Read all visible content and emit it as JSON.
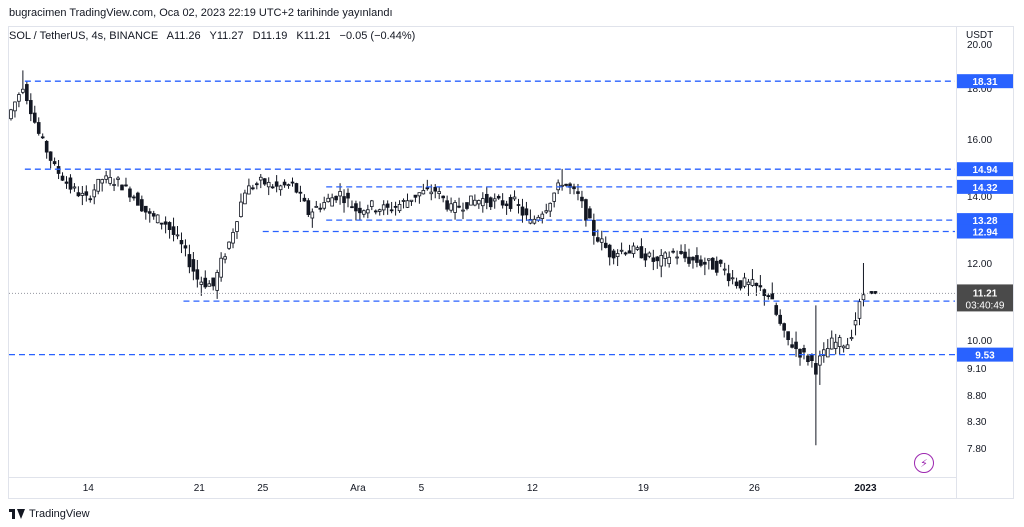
{
  "header": {
    "published_text": "bugracimen TradingView.com, Oca 02, 2023 22:19 UTC+2 tarihinde yayınlandı"
  },
  "legend": {
    "symbol": "SOL / TetherUS, 4s, BINANCE",
    "open": "A11.26",
    "high": "Y11.27",
    "low": "D11.19",
    "close": "K11.21",
    "change": "−0.05 (−0.44%)"
  },
  "axis": {
    "currency": "USDT",
    "y_ticks": [
      "20.00",
      "18.00",
      "16.00",
      "14.00",
      "12.00",
      "10.00",
      "9.10",
      "8.80",
      "8.30",
      "7.80"
    ],
    "x_ticks": [
      "14",
      "21",
      "25",
      "Ara",
      "5",
      "12",
      "19",
      "26",
      "2023"
    ]
  },
  "price_labels": {
    "current_price": "11.21",
    "countdown": "03:40:49"
  },
  "footer": {
    "brand": "TradingView"
  },
  "colors": {
    "level_line": "#2962ff",
    "candle": "#131722",
    "price_tag": "#2962ff",
    "current_tag": "#4a4a4a",
    "alert_icon": "#9c27b0"
  },
  "chart_data": {
    "type": "candlestick",
    "symbol": "SOL / TetherUS",
    "interval": "4s",
    "exchange": "BINANCE",
    "ylabel": "USDT",
    "ylim": [
      7.6,
      20.2
    ],
    "y_ticks": [
      20.0,
      18.0,
      16.0,
      14.0,
      12.0,
      10.0,
      9.1,
      8.8,
      8.3,
      7.8
    ],
    "x_ticks": [
      {
        "label": "14",
        "date": "2022-11-14"
      },
      {
        "label": "21",
        "date": "2022-11-21"
      },
      {
        "label": "25",
        "date": "2022-11-25"
      },
      {
        "label": "Ara",
        "date": "2022-12-01"
      },
      {
        "label": "5",
        "date": "2022-12-05"
      },
      {
        "label": "12",
        "date": "2022-12-12"
      },
      {
        "label": "19",
        "date": "2022-12-19"
      },
      {
        "label": "26",
        "date": "2022-12-26"
      },
      {
        "label": "2023",
        "date": "2023-01-02"
      }
    ],
    "x_range": [
      "2022-11-09",
      "2023-01-06"
    ],
    "horizontal_levels": [
      {
        "value": 18.31,
        "from": "2022-11-10",
        "label": "18.31"
      },
      {
        "value": 14.94,
        "from": "2022-11-10",
        "label": "14.94"
      },
      {
        "value": 14.32,
        "from": "2022-11-29",
        "label": "14.32"
      },
      {
        "value": 13.28,
        "from": "2022-11-29",
        "label": "13.28"
      },
      {
        "value": 12.94,
        "from": "2022-11-25",
        "label": "12.94"
      },
      {
        "value": 11.01,
        "from": "2022-11-20",
        "label": "11.01"
      },
      {
        "value": 9.53,
        "from": "2022-11-09",
        "label": "9.53"
      }
    ],
    "last_price": 11.21,
    "close_path": [
      [
        "2022-11-09",
        16.8
      ],
      [
        "2022-11-10",
        18.1
      ],
      [
        "2022-11-11",
        16.2
      ],
      [
        "2022-11-12",
        15.0
      ],
      [
        "2022-11-13",
        14.3
      ],
      [
        "2022-11-14",
        13.9
      ],
      [
        "2022-11-15",
        14.6
      ],
      [
        "2022-11-16",
        14.5
      ],
      [
        "2022-11-17",
        14.0
      ],
      [
        "2022-11-18",
        13.4
      ],
      [
        "2022-11-19",
        13.2
      ],
      [
        "2022-11-20",
        12.5
      ],
      [
        "2022-11-21",
        11.6
      ],
      [
        "2022-11-22",
        11.4
      ],
      [
        "2022-11-23",
        12.6
      ],
      [
        "2022-11-24",
        14.2
      ],
      [
        "2022-11-25",
        14.5
      ],
      [
        "2022-11-26",
        14.3
      ],
      [
        "2022-11-27",
        14.4
      ],
      [
        "2022-11-28",
        13.5
      ],
      [
        "2022-11-29",
        13.8
      ],
      [
        "2022-11-30",
        14.1
      ],
      [
        "2022-12-01",
        13.6
      ],
      [
        "2022-12-02",
        13.7
      ],
      [
        "2022-12-03",
        13.6
      ],
      [
        "2022-12-04",
        13.8
      ],
      [
        "2022-12-05",
        14.1
      ],
      [
        "2022-12-06",
        14.2
      ],
      [
        "2022-12-07",
        13.6
      ],
      [
        "2022-12-08",
        13.8
      ],
      [
        "2022-12-09",
        13.9
      ],
      [
        "2022-12-10",
        13.8
      ],
      [
        "2022-12-11",
        13.8
      ],
      [
        "2022-12-12",
        13.2
      ],
      [
        "2022-12-13",
        13.7
      ],
      [
        "2022-12-14",
        14.5
      ],
      [
        "2022-12-15",
        14.0
      ],
      [
        "2022-12-16",
        12.9
      ],
      [
        "2022-12-17",
        12.3
      ],
      [
        "2022-12-18",
        12.4
      ],
      [
        "2022-12-19",
        12.3
      ],
      [
        "2022-12-20",
        12.0
      ],
      [
        "2022-12-21",
        12.3
      ],
      [
        "2022-12-22",
        12.1
      ],
      [
        "2022-12-23",
        12.0
      ],
      [
        "2022-12-24",
        11.9
      ],
      [
        "2022-12-25",
        11.5
      ],
      [
        "2022-12-26",
        11.4
      ],
      [
        "2022-12-27",
        11.2
      ],
      [
        "2022-12-28",
        10.1
      ],
      [
        "2022-12-29",
        9.6
      ],
      [
        "2022-12-30",
        9.2
      ],
      [
        "2022-12-31",
        9.9
      ],
      [
        "2023-01-01",
        9.9
      ],
      [
        "2023-01-02",
        11.2
      ]
    ]
  }
}
